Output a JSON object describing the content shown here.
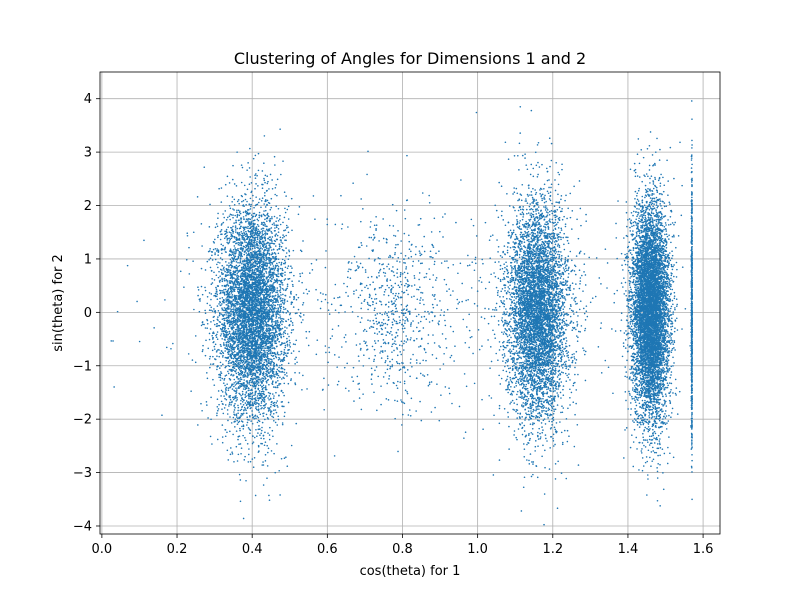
{
  "chart_data": {
    "type": "scatter",
    "title": "Clustering of Angles for Dimensions 1 and 2",
    "xlabel": "cos(theta) for 1",
    "ylabel": "sin(theta) for 2",
    "xlim": [
      -0.005,
      1.645
    ],
    "ylim": [
      -4.15,
      4.5
    ],
    "x_ticks": [
      0.0,
      0.2,
      0.4,
      0.6,
      0.8,
      1.0,
      1.2,
      1.4,
      1.6
    ],
    "x_tick_labels": [
      "0.0",
      "0.2",
      "0.4",
      "0.6",
      "0.8",
      "1.0",
      "1.2",
      "1.4",
      "1.6"
    ],
    "y_ticks": [
      -4,
      -3,
      -2,
      -1,
      0,
      1,
      2,
      3,
      4
    ],
    "y_tick_labels": [
      "−4",
      "−3",
      "−2",
      "−1",
      "0",
      "1",
      "2",
      "3",
      "4"
    ],
    "grid": true,
    "marker_color": "#1f77b4",
    "marker_size": 0.8,
    "clusters": [
      {
        "x_center": 0.4,
        "x_spread": 0.045,
        "y_center": 0.0,
        "y_spread": 1.0,
        "count": 6000
      },
      {
        "x_center": 1.16,
        "x_spread": 0.04,
        "y_center": 0.0,
        "y_spread": 1.0,
        "count": 5500
      },
      {
        "x_center": 1.46,
        "x_spread": 0.025,
        "y_center": 0.0,
        "y_spread": 1.0,
        "count": 7000
      },
      {
        "x_center": 0.78,
        "x_spread": 0.06,
        "y_center": 0.0,
        "y_spread": 0.9,
        "count": 500
      },
      {
        "x_center": 0.8,
        "x_spread": 0.35,
        "y_center": 0.0,
        "y_spread": 1.0,
        "count": 600
      },
      {
        "x_center": 1.5708,
        "x_spread": 0.001,
        "y_center": 0.0,
        "y_spread": 1.2,
        "count": 1500
      }
    ]
  }
}
